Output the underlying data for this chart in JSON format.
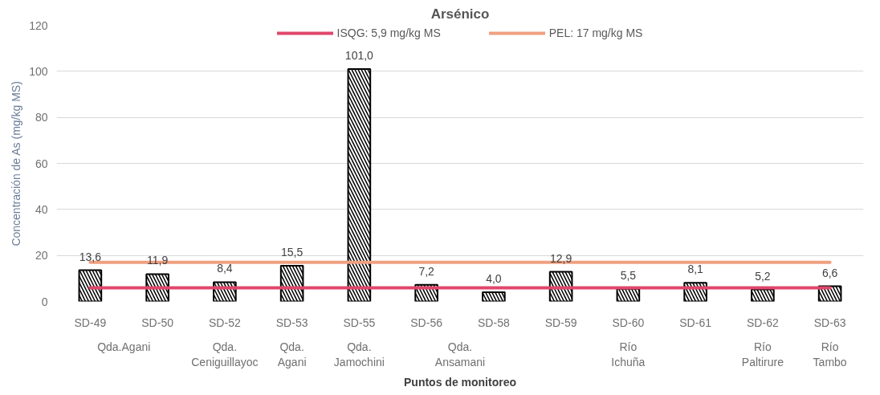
{
  "chart_data": {
    "type": "bar",
    "title": "Arsénico",
    "xlabel": "Puntos de monitoreo",
    "ylabel": "Concentración de As (mg/kg MS)",
    "categories": [
      "SD-49",
      "SD-50",
      "SD-52",
      "SD-53",
      "SD-55",
      "SD-56",
      "SD-58",
      "SD-59",
      "SD-60",
      "SD-61",
      "SD-62",
      "SD-63"
    ],
    "series": [
      {
        "color": "#000000",
        "values": [
          13.6,
          11.9,
          8.4,
          15.5,
          101.0,
          7.2,
          4.0,
          12.9,
          5.5,
          8.1,
          5.2,
          6.6
        ],
        "value_labels": [
          "13,6",
          "11,9",
          "8,4",
          "15,5",
          "101,0",
          "7,2",
          "4,0",
          "12,9",
          "5,5",
          "8,1",
          "5,2",
          "6,6"
        ]
      },
      {
        "type": "line",
        "name": "ISQG: 5,9 mg/kg MS",
        "color": "#e0476b",
        "values": [
          5.9,
          5.9,
          5.9,
          5.9,
          5.9,
          5.9,
          5.9,
          5.9,
          5.9,
          5.9,
          5.9,
          5.9
        ]
      },
      {
        "type": "line",
        "name": "PEL: 17 mg/kg MS",
        "color": "#f0a080",
        "values": [
          17,
          17,
          17,
          17,
          17,
          17,
          17,
          17,
          17,
          17,
          17,
          17
        ]
      }
    ],
    "ylim": [
      0,
      120
    ],
    "yticks": [
      0,
      20,
      40,
      60,
      80,
      100,
      120
    ],
    "grid": "y",
    "legend": "top",
    "annotations": [
      "Qda.Agani",
      "Qda.\nCeniguillayoc",
      "Qda.\nAgani",
      "Qda.\nJamochini",
      "Qda.\nAnsamani",
      "Río\nIchuña",
      "Río\nPaltirure",
      "Río\nTambo"
    ]
  }
}
